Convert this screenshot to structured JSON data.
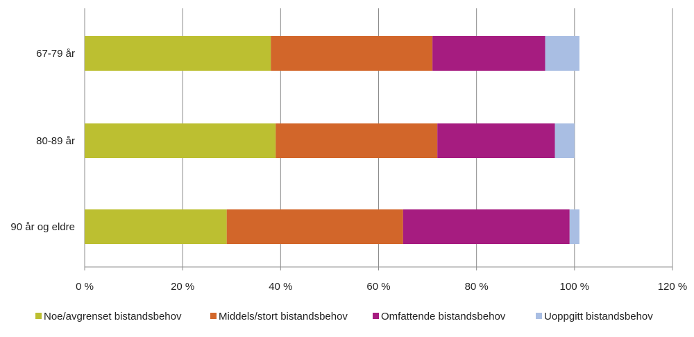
{
  "chart_data": {
    "type": "bar",
    "orientation": "horizontal",
    "stacked": true,
    "categories": [
      "67-79 år",
      "80-89 år",
      "90 år og eldre"
    ],
    "series": [
      {
        "name": "Noe/avgrenset bistandsbehov",
        "color": "#BCBF31",
        "values": [
          38,
          39,
          29
        ]
      },
      {
        "name": "Middels/stort bistandsbehov",
        "color": "#D2662A",
        "values": [
          33,
          33,
          36
        ]
      },
      {
        "name": "Omfattende bistandsbehov",
        "color": "#A61C80",
        "values": [
          23,
          24,
          34
        ]
      },
      {
        "name": "Uoppgitt bistandsbehov",
        "color": "#A9BEE3",
        "values": [
          7,
          4,
          2
        ]
      }
    ],
    "xaxis": {
      "range": [
        0,
        120
      ],
      "ticks": [
        0,
        20,
        40,
        60,
        80,
        100,
        120
      ],
      "tick_labels": [
        "0 %",
        "20 %",
        "40 %",
        "60 %",
        "80 %",
        "100 %",
        "120 %"
      ]
    },
    "grid": "vertical",
    "legend": "bottom"
  }
}
